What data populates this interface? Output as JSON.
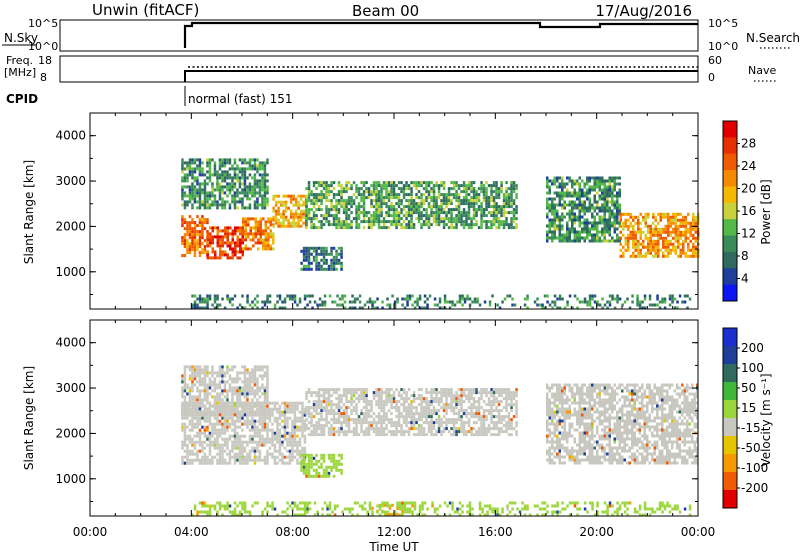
{
  "header": {
    "station": "Unwin (fitACF)",
    "beam": "Beam 00",
    "date": "17/Aug/2016"
  },
  "summary_panels": {
    "nsky_label": "N.Sky",
    "nsky_ticks": [
      "10^5",
      "10^0"
    ],
    "nsearch_label": "N.Search",
    "nsearch_ticks": [
      "10^5",
      "10^0"
    ],
    "freq_label": "Freq.",
    "freq_unit": "[MHz]",
    "freq_ticks": [
      "18",
      "8"
    ],
    "nave_label": "Nave",
    "nave_ticks": [
      "60",
      "0"
    ],
    "cpid_label": "CPID",
    "cpid_value": "normal (fast) 151"
  },
  "colors": {
    "power": [
      "#0b16f5",
      "#1d3f9a",
      "#2f6a5e",
      "#3b8b5a",
      "#52b848",
      "#c9d23a",
      "#f5b700",
      "#f58a00",
      "#f05a00",
      "#e63000",
      "#e00000"
    ],
    "velocity": [
      "#e00000",
      "#f05a00",
      "#f59a00",
      "#e6c400",
      "#c8c8c0",
      "#9bd63c",
      "#3fb83a",
      "#2f6a5e",
      "#1d3f9a",
      "#1b2fd0"
    ],
    "ground_scatter": "#c8c8c0"
  },
  "chart_data": [
    {
      "type": "heatmap",
      "quantity": "Power",
      "ylabel": "Slant Range [km]",
      "ylim": [
        180,
        4500
      ],
      "yticks": [
        "1000",
        "2000",
        "3000",
        "4000"
      ],
      "xlim_hours": [
        0,
        24
      ],
      "colorbar_label": "Power [dB]",
      "colorbar_ticks": [
        "4",
        "8",
        "12",
        "16",
        "20",
        "24",
        "28"
      ],
      "colorbar_range": [
        0,
        32
      ],
      "echo_regions": [
        {
          "t_start": 3.6,
          "t_end": 4.6,
          "range_low": 1350,
          "range_high": 2250,
          "power_db": 24
        },
        {
          "t_start": 4.6,
          "t_end": 6.0,
          "range_low": 1300,
          "range_high": 2000,
          "power_db": 27
        },
        {
          "t_start": 6.0,
          "t_end": 7.2,
          "range_low": 1500,
          "range_high": 2200,
          "power_db": 22
        },
        {
          "t_start": 7.2,
          "t_end": 8.5,
          "range_low": 2000,
          "range_high": 2700,
          "power_db": 20
        },
        {
          "t_start": 3.6,
          "t_end": 7.0,
          "range_low": 2400,
          "range_high": 3500,
          "power_db": 10
        },
        {
          "t_start": 8.5,
          "t_end": 16.8,
          "range_low": 2000,
          "range_high": 3000,
          "power_db": 11
        },
        {
          "t_start": 8.3,
          "t_end": 9.9,
          "range_low": 1050,
          "range_high": 1550,
          "power_db": 8
        },
        {
          "t_start": 18.0,
          "t_end": 20.9,
          "range_low": 1700,
          "range_high": 3100,
          "power_db": 10
        },
        {
          "t_start": 20.9,
          "t_end": 24.0,
          "range_low": 1350,
          "range_high": 2300,
          "power_db": 21
        },
        {
          "t_start": 4.0,
          "t_end": 23.8,
          "range_low": 200,
          "range_high": 500,
          "power_db": 9
        }
      ]
    },
    {
      "type": "heatmap",
      "quantity": "Velocity",
      "ylabel": "Slant Range [km]",
      "ylim": [
        180,
        4500
      ],
      "yticks": [
        "1000",
        "2000",
        "3000",
        "4000"
      ],
      "xlabel": "Time UT",
      "xlim_hours": [
        0,
        24
      ],
      "xticks": [
        "00:00",
        "04:00",
        "08:00",
        "12:00",
        "16:00",
        "20:00",
        "00:00"
      ],
      "colorbar_label": "Velocity [m s⁻¹]",
      "colorbar_ticks": [
        "-200",
        "-100",
        "-50",
        "-15",
        "15",
        "50",
        "100",
        "200"
      ],
      "echo_regions": [
        {
          "t_start": 3.6,
          "t_end": 8.5,
          "range_low": 1350,
          "range_high": 2700,
          "velocity": 0
        },
        {
          "t_start": 8.5,
          "t_end": 16.8,
          "range_low": 2000,
          "range_high": 3000,
          "velocity": 0
        },
        {
          "t_start": 3.6,
          "t_end": 7.0,
          "range_low": 2400,
          "range_high": 3500,
          "velocity": 0
        },
        {
          "t_start": 8.3,
          "t_end": 9.9,
          "range_low": 1050,
          "range_high": 1550,
          "velocity": 40
        },
        {
          "t_start": 18.0,
          "t_end": 24.0,
          "range_low": 1350,
          "range_high": 3100,
          "velocity": 0
        },
        {
          "t_start": 11.0,
          "t_end": 12.3,
          "range_low": 200,
          "range_high": 450,
          "velocity": -60
        },
        {
          "t_start": 4.0,
          "t_end": 23.8,
          "range_low": 200,
          "range_high": 500,
          "velocity": 30
        }
      ]
    }
  ]
}
